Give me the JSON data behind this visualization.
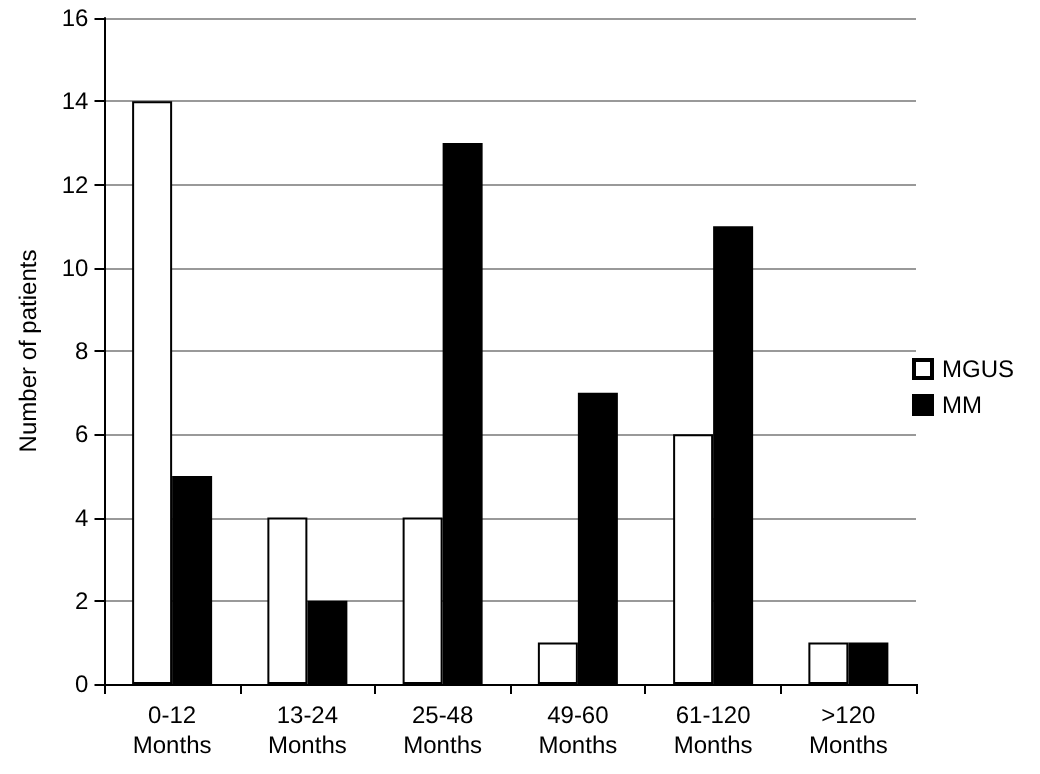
{
  "chart_data": {
    "type": "bar",
    "ylabel": "Number of patients",
    "categories": [
      "0-12 Months",
      "13-24 Months",
      "25-48 Months",
      "49-60 Months",
      "61-120 Months",
      ">120 Months"
    ],
    "series": [
      {
        "name": "MGUS",
        "color": "#ffffff",
        "values": [
          14,
          4,
          4,
          1,
          6,
          1
        ]
      },
      {
        "name": "MM",
        "color": "#000000",
        "values": [
          5,
          2,
          13,
          7,
          11,
          1
        ]
      }
    ],
    "ylim": [
      0,
      16
    ],
    "yticks": [
      0,
      2,
      4,
      6,
      8,
      10,
      12,
      14,
      16
    ],
    "grid": "y",
    "legend": "right"
  }
}
